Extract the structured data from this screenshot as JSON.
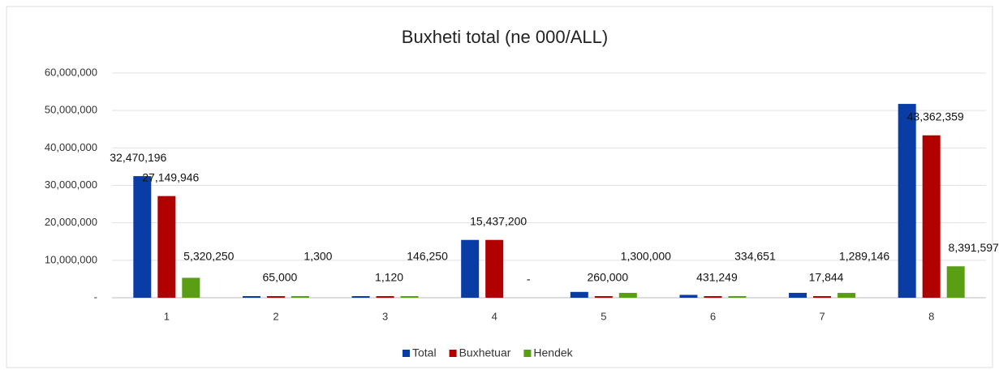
{
  "chart_data": {
    "type": "bar",
    "title": "Buxheti total (ne 000/ALL)",
    "categories": [
      "1",
      "2",
      "3",
      "4",
      "5",
      "6",
      "7",
      "8"
    ],
    "series": [
      {
        "name": "Total",
        "color": "#0a3ca6",
        "values": [
          32470196,
          66300,
          147370,
          15437200,
          1560000,
          765900,
          1306990,
          51753956
        ],
        "value_labels": [
          "32,470,196",
          null,
          null,
          null,
          null,
          null,
          null,
          null
        ]
      },
      {
        "name": "Buxhetuar",
        "color": "#b00000",
        "values": [
          27149946,
          65000,
          1120,
          15437200,
          260000,
          431249,
          17844,
          43362359
        ],
        "value_labels": [
          "27,149,946",
          "65,000",
          "1,120",
          "15,437,200",
          "260,000",
          "431,249",
          "17,844",
          "43,362,359"
        ]
      },
      {
        "name": "Hendek",
        "color": "#5a9e13",
        "values": [
          5320250,
          1300,
          146250,
          0,
          1300000,
          334651,
          1289146,
          8391597
        ],
        "value_labels": [
          "5,320,250",
          "1,300",
          "146,250",
          "-",
          "1,300,000",
          "334,651",
          "1,289,146",
          "8,391,597"
        ]
      }
    ],
    "ylim": [
      0,
      60000000
    ],
    "yticks": [
      {
        "value": 0,
        "label": "-"
      },
      {
        "value": 10000000,
        "label": "10,000,000"
      },
      {
        "value": 20000000,
        "label": "20,000,000"
      },
      {
        "value": 30000000,
        "label": "30,000,000"
      },
      {
        "value": 40000000,
        "label": "40,000,000"
      },
      {
        "value": 50000000,
        "label": "50,000,000"
      },
      {
        "value": 60000000,
        "label": "60,000,000"
      }
    ],
    "grid": true,
    "legend": "bottom"
  }
}
